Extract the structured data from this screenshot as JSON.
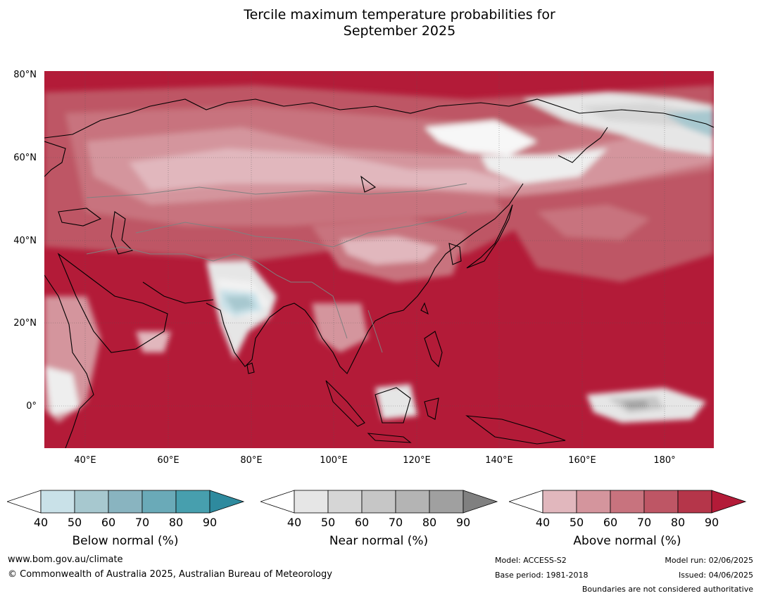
{
  "title_line1": "Tercile maximum temperature probabilities for",
  "title_line2": "September 2025",
  "lat_labels": [
    "80°N",
    "60°N",
    "40°N",
    "20°N",
    "0°"
  ],
  "lon_labels": [
    "40°E",
    "60°E",
    "80°E",
    "100°E",
    "120°E",
    "140°E",
    "160°E",
    "180°"
  ],
  "colorbars": [
    {
      "title": "Below normal (%)",
      "ticks": [
        "40",
        "50",
        "60",
        "70",
        "80",
        "90"
      ],
      "colors": [
        "#c9e1e8",
        "#a7c8cf",
        "#89b4c0",
        "#6aaab8",
        "#479fae",
        "#2e8a9e"
      ]
    },
    {
      "title": "Near normal (%)",
      "ticks": [
        "40",
        "50",
        "60",
        "70",
        "80",
        "90"
      ],
      "colors": [
        "#e6e6e6",
        "#d6d6d6",
        "#c6c6c6",
        "#b4b4b4",
        "#a0a0a0",
        "#808080"
      ]
    },
    {
      "title": "Above normal (%)",
      "ticks": [
        "40",
        "50",
        "60",
        "70",
        "80",
        "90"
      ],
      "colors": [
        "#e1b7bd",
        "#d4959d",
        "#c8737e",
        "#be5665",
        "#b5364a",
        "#b31b38"
      ]
    }
  ],
  "footer": {
    "url": "www.bom.gov.au/climate",
    "copyright": "© Commonwealth of Australia 2025, Australian Bureau of Meteorology",
    "model": "Model: ACCESS-S2",
    "base_period": "Base period: 1981-2018",
    "model_run": "Model run: 02/06/2025",
    "issued": "Issued: 04/06/2025",
    "disclaimer": "Boundaries are not considered authoritative"
  }
}
